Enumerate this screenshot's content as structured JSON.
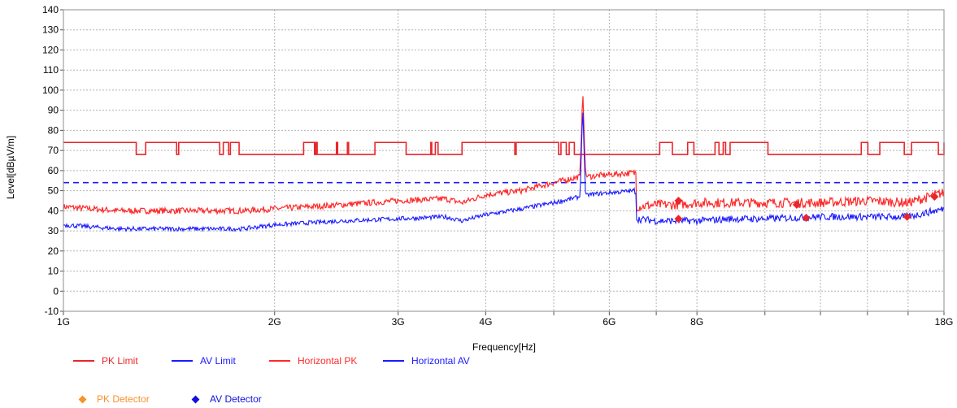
{
  "chart_data": {
    "type": "line",
    "xlabel": "Frequency[Hz]",
    "ylabel": "Level[dBµV/m]",
    "x_scale": "log",
    "xlim": [
      1,
      18
    ],
    "ylim": [
      -10,
      140
    ],
    "y_ticks": [
      -10,
      0,
      10,
      20,
      30,
      40,
      50,
      60,
      70,
      80,
      90,
      100,
      110,
      120,
      130,
      140
    ],
    "x_ticks": [
      {
        "value": 1,
        "label": "1G"
      },
      {
        "value": 2,
        "label": "2G"
      },
      {
        "value": 3,
        "label": "3G"
      },
      {
        "value": 4,
        "label": "4G"
      },
      {
        "value": 6,
        "label": "6G"
      },
      {
        "value": 8,
        "label": "8G"
      },
      {
        "value": 18,
        "label": "18G"
      }
    ],
    "x_minor_gridlines": [
      5,
      7,
      10,
      12,
      14,
      16
    ],
    "grid": true,
    "legend_position": "bottom",
    "series": [
      {
        "name": "PK Limit",
        "color": "#e8262b",
        "style": "step",
        "x": [
          1.0,
          1.27,
          1.31,
          1.45,
          1.46,
          1.67,
          1.69,
          1.72,
          1.73,
          1.78,
          2.2,
          2.28,
          2.29,
          2.3,
          2.45,
          2.46,
          2.54,
          2.55,
          2.78,
          3.08,
          3.34,
          3.35,
          3.39,
          3.42,
          3.7,
          4.4,
          4.42,
          5.08,
          5.12,
          5.21,
          5.26,
          5.35,
          7.08,
          7.38,
          7.76,
          7.92,
          8.49,
          8.6,
          8.72,
          8.79,
          8.92,
          10.1,
          13.72,
          14.02,
          14.58,
          15.8,
          16.18,
          17.67,
          18.0
        ],
        "y": [
          74,
          68,
          74,
          68,
          74,
          68,
          74,
          68,
          74,
          68,
          74,
          68,
          74,
          68,
          74,
          68,
          74,
          68,
          74,
          68,
          74,
          68,
          74,
          68,
          74,
          68,
          74,
          68,
          74,
          68,
          74,
          68,
          74,
          68,
          74,
          68,
          74,
          68,
          74,
          68,
          74,
          68,
          74,
          68,
          74,
          68,
          74,
          68,
          74
        ]
      },
      {
        "name": "AV Limit",
        "color": "#1a1aff",
        "style": "dashed",
        "x": [
          1.0,
          18.0
        ],
        "y": [
          54,
          54
        ]
      },
      {
        "name": "Horizontal PK",
        "color": "#ff2a2a",
        "style": "noisy",
        "x": [
          1.0,
          1.2,
          1.5,
          1.8,
          2.0,
          2.5,
          3.0,
          3.5,
          3.7,
          4.0,
          4.5,
          5.0,
          5.3,
          5.45,
          5.5,
          5.55,
          5.6,
          6.0,
          6.55,
          6.56,
          7.0,
          7.5,
          8.0,
          9.0,
          10.0,
          12.0,
          14.0,
          16.0,
          18.0
        ],
        "y": [
          42,
          40,
          40,
          40,
          41,
          43,
          45,
          46,
          44,
          48,
          50,
          54,
          56,
          57,
          100,
          58,
          57,
          58,
          59,
          42,
          43,
          43,
          44,
          44,
          44,
          44,
          45,
          44,
          49
        ]
      },
      {
        "name": "Horizontal AV",
        "color": "#1a1aff",
        "style": "noisy",
        "x": [
          1.0,
          1.2,
          1.5,
          1.8,
          2.0,
          2.5,
          3.0,
          3.5,
          3.7,
          4.0,
          4.5,
          5.0,
          5.3,
          5.45,
          5.5,
          5.55,
          5.6,
          6.0,
          6.55,
          6.56,
          7.0,
          7.5,
          8.0,
          9.0,
          10.0,
          12.0,
          14.0,
          16.0,
          18.0
        ],
        "y": [
          33,
          31,
          31,
          31,
          33,
          35,
          36,
          37,
          35,
          38,
          41,
          44,
          46,
          47,
          92,
          47,
          48,
          49,
          50,
          36,
          35,
          35,
          35,
          36,
          36,
          37,
          37,
          37,
          41
        ]
      }
    ],
    "markers": [
      {
        "name": "PK Detector",
        "color": "#f7922e",
        "points": []
      },
      {
        "name": "AV Detector",
        "color": "#1111dd",
        "points": []
      },
      {
        "name": "Detected Peaks",
        "color": "#e8262b",
        "points": [
          [
            7.53,
            45
          ],
          [
            7.53,
            36
          ],
          [
            11.1,
            43
          ],
          [
            11.45,
            36.5
          ],
          [
            15.95,
            37
          ],
          [
            17.45,
            47
          ]
        ]
      }
    ]
  },
  "legend": {
    "items": [
      {
        "label": "PK Limit",
        "color": "#e8262b"
      },
      {
        "label": "AV Limit",
        "color": "#1a1aff"
      },
      {
        "label": "Horizontal PK",
        "color": "#ff2a2a"
      },
      {
        "label": "Horizontal AV",
        "color": "#1a1aff"
      }
    ],
    "detectors": [
      {
        "label": "PK Detector",
        "color": "#f7922e"
      },
      {
        "label": "AV Detector",
        "color": "#1111dd"
      }
    ]
  }
}
